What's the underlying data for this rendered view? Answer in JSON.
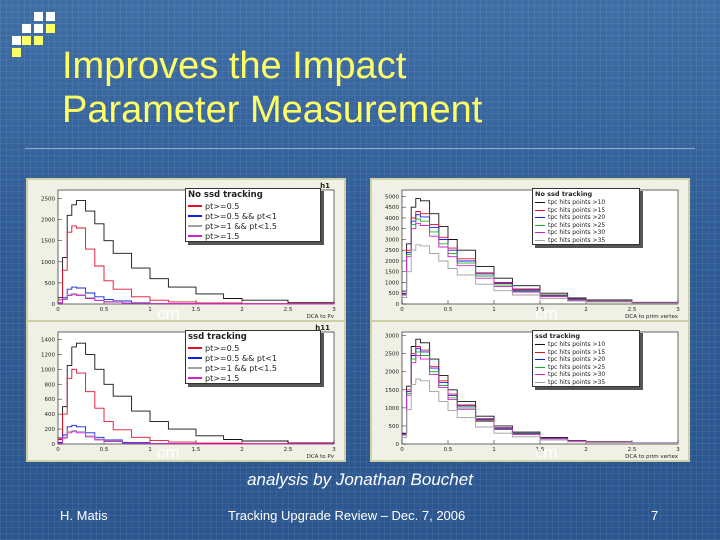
{
  "slide": {
    "title_line1": "Improves the Impact",
    "title_line2": "Parameter Measurement",
    "credit": "analysis by Jonathan Bouchet",
    "footer_left": "H. Matis",
    "footer_center": "Tracking Upgrade Review  –  Dec. 7, 2006",
    "footer_right": "7",
    "unit_label": "cm"
  },
  "colors": {
    "title": "#ffff66",
    "background": "#2f5c96",
    "panel_bg": "#f0f0e4",
    "black": "#111111",
    "red": "#e0102a",
    "blue": "#1020e0",
    "grey": "#a0a0a0",
    "magenta": "#d020d0",
    "green": "#20b020",
    "cyan": "#20b0c0"
  },
  "chart_data": [
    {
      "type": "line",
      "histogram_id": "h1",
      "legend_title": "No ssd tracking",
      "xlabel": "DCA to Pv",
      "x_ticks": [
        0,
        0.5,
        1,
        1.5,
        2,
        2.5,
        3
      ],
      "y_ticks": [
        0,
        500,
        1000,
        1500,
        2000,
        2500
      ],
      "xlim": [
        0,
        3
      ],
      "ylim": [
        0,
        2700
      ],
      "series": [
        {
          "name": "",
          "color": "black",
          "x": [
            0,
            0.05,
            0.1,
            0.15,
            0.2,
            0.3,
            0.4,
            0.5,
            0.6,
            0.8,
            1.0,
            1.2,
            1.5,
            1.8,
            2.0,
            2.5,
            3.0
          ],
          "y": [
            150,
            1100,
            2100,
            2350,
            2450,
            2200,
            1900,
            1500,
            1200,
            850,
            600,
            400,
            240,
            130,
            90,
            30,
            10
          ]
        },
        {
          "name": "pt>=0.5",
          "color": "red",
          "x": [
            0,
            0.05,
            0.1,
            0.15,
            0.2,
            0.3,
            0.4,
            0.5,
            0.6,
            0.8,
            1.0,
            1.2,
            1.5,
            2.0,
            3.0
          ],
          "y": [
            100,
            800,
            1700,
            1850,
            1800,
            1300,
            900,
            550,
            350,
            170,
            90,
            50,
            25,
            10,
            5
          ]
        },
        {
          "name": "pt>=0.5 && pt<1",
          "color": "blue",
          "x": [
            0,
            0.05,
            0.1,
            0.15,
            0.2,
            0.3,
            0.4,
            0.5,
            0.6,
            0.8,
            1.0,
            1.5,
            2.0,
            3.0
          ],
          "y": [
            30,
            150,
            350,
            400,
            380,
            260,
            170,
            110,
            70,
            30,
            15,
            5,
            2,
            0
          ]
        },
        {
          "name": "pt>=1 && pt<1.5",
          "color": "grey",
          "x": [
            0,
            0.05,
            0.1,
            0.15,
            0.2,
            0.3,
            0.4,
            0.5,
            0.7,
            1.0,
            1.5,
            3.0
          ],
          "y": [
            20,
            120,
            230,
            250,
            230,
            150,
            90,
            60,
            25,
            10,
            3,
            0
          ]
        },
        {
          "name": "pt>=1.5",
          "color": "magenta",
          "x": [
            0,
            0.05,
            0.1,
            0.15,
            0.2,
            0.3,
            0.4,
            0.5,
            0.7,
            1.0,
            1.5,
            3.0
          ],
          "y": [
            20,
            110,
            200,
            220,
            200,
            130,
            80,
            45,
            20,
            8,
            2,
            0
          ]
        }
      ]
    },
    {
      "type": "line",
      "histogram_id": "",
      "legend_title": "No ssd tracking",
      "xlabel": "DCA to prim vertex",
      "x_ticks": [
        0,
        0.5,
        1,
        1.5,
        2,
        2.5,
        3
      ],
      "y_ticks": [
        0,
        500,
        1000,
        1500,
        2000,
        2500,
        3000,
        3500,
        4000,
        4500,
        5000
      ],
      "xlim": [
        0,
        3
      ],
      "ylim": [
        0,
        5300
      ],
      "series": [
        {
          "name": "tpc hits points >10",
          "color": "black",
          "x": [
            0,
            0.05,
            0.1,
            0.15,
            0.2,
            0.3,
            0.4,
            0.5,
            0.6,
            0.8,
            1.0,
            1.2,
            1.5,
            1.8,
            2.0,
            2.5,
            3.0
          ],
          "y": [
            600,
            2800,
            4500,
            4900,
            4800,
            4200,
            3600,
            3000,
            2500,
            1750,
            1200,
            850,
            500,
            280,
            190,
            80,
            40
          ]
        },
        {
          "name": "tpc hits points >15",
          "color": "red",
          "x": [
            0,
            0.05,
            0.1,
            0.15,
            0.2,
            0.3,
            0.4,
            0.5,
            0.6,
            0.8,
            1.0,
            1.2,
            1.5,
            1.8,
            2.0,
            2.5,
            3.0
          ],
          "y": [
            500,
            2500,
            4000,
            4300,
            4200,
            3700,
            3100,
            2600,
            2100,
            1450,
            1000,
            700,
            420,
            230,
            160,
            70,
            30
          ]
        },
        {
          "name": "tpc hits points >20",
          "color": "blue",
          "x": [
            0,
            0.05,
            0.1,
            0.15,
            0.2,
            0.3,
            0.4,
            0.5,
            0.6,
            0.8,
            1.0,
            1.2,
            1.5,
            1.8,
            2.0,
            2.5,
            3.0
          ],
          "y": [
            480,
            2400,
            3850,
            4150,
            4050,
            3550,
            3000,
            2500,
            2000,
            1400,
            950,
            650,
            400,
            220,
            150,
            60,
            25
          ]
        },
        {
          "name": "tpc hits points >25",
          "color": "green",
          "x": [
            0,
            0.05,
            0.1,
            0.15,
            0.2,
            0.3,
            0.4,
            0.5,
            0.6,
            0.8,
            1.0,
            1.2,
            1.5,
            1.8,
            2.0,
            2.5,
            3.0
          ],
          "y": [
            450,
            2300,
            3700,
            3950,
            3850,
            3350,
            2800,
            2350,
            1900,
            1300,
            880,
            600,
            370,
            200,
            140,
            55,
            22
          ]
        },
        {
          "name": "tpc hits points >30",
          "color": "magenta",
          "x": [
            0,
            0.05,
            0.1,
            0.15,
            0.2,
            0.3,
            0.4,
            0.5,
            0.6,
            0.8,
            1.0,
            1.2,
            1.5,
            1.8,
            2.0,
            2.5,
            3.0
          ],
          "y": [
            420,
            2200,
            3500,
            3750,
            3650,
            3150,
            2650,
            2200,
            1780,
            1200,
            820,
            560,
            340,
            180,
            120,
            50,
            20
          ]
        },
        {
          "name": "tpc hits points >35",
          "color": "grey",
          "x": [
            0,
            0.05,
            0.1,
            0.15,
            0.2,
            0.3,
            0.4,
            0.5,
            0.6,
            0.8,
            1.0,
            1.2,
            1.5,
            1.8,
            2.0,
            2.5,
            3.0
          ],
          "y": [
            300,
            1500,
            2500,
            2750,
            2700,
            2350,
            2000,
            1650,
            1350,
            920,
            620,
            420,
            250,
            140,
            90,
            35,
            15
          ]
        }
      ]
    },
    {
      "type": "line",
      "histogram_id": "h11",
      "legend_title": "ssd tracking",
      "xlabel": "DCA to Pv",
      "x_ticks": [
        0,
        0.5,
        1,
        1.5,
        2,
        2.5,
        3
      ],
      "y_ticks": [
        0,
        200,
        400,
        600,
        800,
        1000,
        1200,
        1400
      ],
      "xlim": [
        0,
        3
      ],
      "ylim": [
        0,
        1500
      ],
      "series": [
        {
          "name": "",
          "color": "black",
          "x": [
            0,
            0.05,
            0.1,
            0.15,
            0.2,
            0.3,
            0.4,
            0.5,
            0.6,
            0.8,
            1.0,
            1.2,
            1.5,
            1.8,
            2.0,
            2.5,
            3.0
          ],
          "y": [
            80,
            500,
            1050,
            1300,
            1350,
            1200,
            1000,
            800,
            640,
            440,
            300,
            200,
            110,
            60,
            40,
            15,
            5
          ]
        },
        {
          "name": "pt>=0.5",
          "color": "red",
          "x": [
            0,
            0.05,
            0.1,
            0.15,
            0.2,
            0.3,
            0.4,
            0.5,
            0.6,
            0.8,
            1.0,
            1.2,
            1.5,
            2.0,
            3.0
          ],
          "y": [
            60,
            400,
            880,
            1000,
            950,
            700,
            480,
            300,
            190,
            90,
            45,
            25,
            12,
            5,
            2
          ]
        },
        {
          "name": "pt>=0.5 && pt<1",
          "color": "blue",
          "x": [
            0,
            0.05,
            0.1,
            0.15,
            0.2,
            0.3,
            0.4,
            0.5,
            0.7,
            1.0,
            1.5,
            3.0
          ],
          "y": [
            20,
            120,
            230,
            250,
            230,
            150,
            90,
            55,
            22,
            8,
            2,
            0
          ]
        },
        {
          "name": "pt>=1 && pt<1.5",
          "color": "grey",
          "x": [
            0,
            0.05,
            0.1,
            0.15,
            0.2,
            0.3,
            0.4,
            0.5,
            0.7,
            1.0,
            1.5,
            3.0
          ],
          "y": [
            15,
            90,
            170,
            180,
            165,
            110,
            65,
            40,
            15,
            5,
            1,
            0
          ]
        },
        {
          "name": "pt>=1.5",
          "color": "magenta",
          "x": [
            0,
            0.05,
            0.1,
            0.15,
            0.2,
            0.3,
            0.4,
            0.5,
            0.7,
            1.0,
            1.5,
            3.0
          ],
          "y": [
            15,
            80,
            150,
            165,
            150,
            95,
            55,
            32,
            12,
            4,
            1,
            0
          ]
        }
      ]
    },
    {
      "type": "line",
      "histogram_id": "",
      "legend_title": "ssd tracking",
      "xlabel": "DCA to prim vertex",
      "x_ticks": [
        0,
        0.5,
        1,
        1.5,
        2,
        2.5,
        3
      ],
      "y_ticks": [
        0,
        500,
        1000,
        1500,
        2000,
        2500,
        3000
      ],
      "xlim": [
        0,
        3
      ],
      "ylim": [
        0,
        3100
      ],
      "series": [
        {
          "name": "tpc hits points >10",
          "color": "black",
          "x": [
            0,
            0.05,
            0.1,
            0.15,
            0.2,
            0.3,
            0.4,
            0.5,
            0.6,
            0.8,
            1.0,
            1.2,
            1.5,
            1.8,
            2.0,
            2.5,
            3.0
          ],
          "y": [
            300,
            1600,
            2700,
            2900,
            2800,
            2350,
            1900,
            1500,
            1180,
            770,
            500,
            330,
            180,
            100,
            65,
            25,
            10
          ]
        },
        {
          "name": "tpc hits points >15",
          "color": "red",
          "x": [
            0,
            0.05,
            0.1,
            0.15,
            0.2,
            0.3,
            0.4,
            0.5,
            0.6,
            0.8,
            1.0,
            1.2,
            1.5,
            1.8,
            2.0,
            2.5,
            3.0
          ],
          "y": [
            280,
            1500,
            2500,
            2700,
            2600,
            2150,
            1750,
            1380,
            1080,
            700,
            450,
            300,
            165,
            90,
            60,
            22,
            9
          ]
        },
        {
          "name": "tpc hits points >20",
          "color": "blue",
          "x": [
            0,
            0.05,
            0.1,
            0.15,
            0.2,
            0.3,
            0.4,
            0.5,
            0.6,
            0.8,
            1.0,
            1.2,
            1.5,
            1.8,
            2.0,
            2.5,
            3.0
          ],
          "y": [
            270,
            1450,
            2450,
            2650,
            2550,
            2100,
            1700,
            1340,
            1050,
            680,
            440,
            290,
            160,
            88,
            58,
            21,
            8
          ]
        },
        {
          "name": "tpc hits points >25",
          "color": "green",
          "x": [
            0,
            0.05,
            0.1,
            0.15,
            0.2,
            0.3,
            0.4,
            0.5,
            0.6,
            0.8,
            1.0,
            1.2,
            1.5,
            1.8,
            2.0,
            2.5,
            3.0
          ],
          "y": [
            260,
            1400,
            2350,
            2550,
            2450,
            2000,
            1620,
            1280,
            1000,
            650,
            420,
            280,
            150,
            84,
            55,
            20,
            8
          ]
        },
        {
          "name": "tpc hits points >30",
          "color": "magenta",
          "x": [
            0,
            0.05,
            0.1,
            0.15,
            0.2,
            0.3,
            0.4,
            0.5,
            0.6,
            0.8,
            1.0,
            1.2,
            1.5,
            1.8,
            2.0,
            2.5,
            3.0
          ],
          "y": [
            250,
            1350,
            2250,
            2450,
            2350,
            1920,
            1560,
            1230,
            960,
            620,
            400,
            265,
            145,
            80,
            52,
            19,
            7
          ]
        },
        {
          "name": "tpc hits points >35",
          "color": "grey",
          "x": [
            0,
            0.05,
            0.1,
            0.15,
            0.2,
            0.3,
            0.4,
            0.5,
            0.6,
            0.8,
            1.0,
            1.2,
            1.5,
            1.8,
            2.0,
            2.5,
            3.0
          ],
          "y": [
            180,
            950,
            1650,
            1800,
            1750,
            1450,
            1180,
            930,
            730,
            470,
            300,
            200,
            110,
            60,
            40,
            15,
            6
          ]
        }
      ]
    }
  ]
}
